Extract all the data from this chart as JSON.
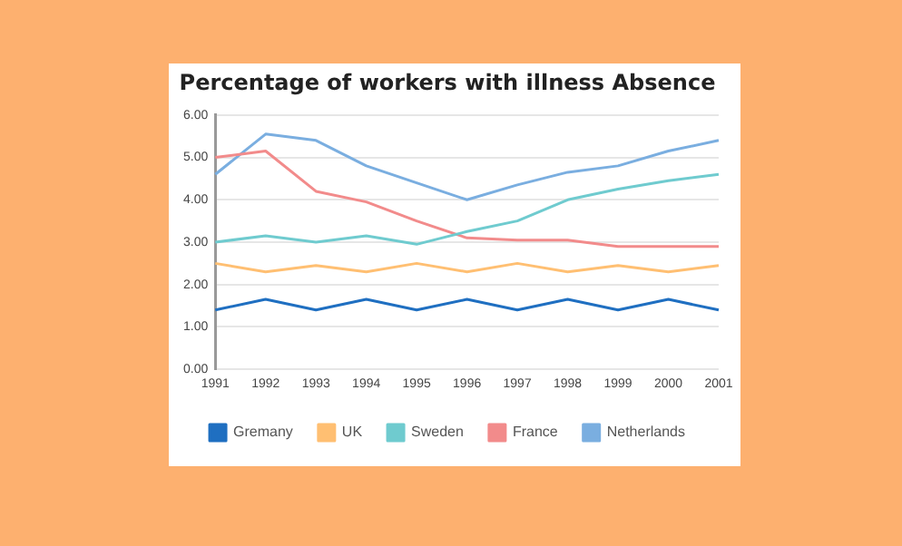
{
  "chart_data": {
    "type": "line",
    "title": "Percentage of workers with illness Absence",
    "categories": [
      "1991",
      "1992",
      "1993",
      "1994",
      "1995",
      "1996",
      "1997",
      "1998",
      "1999",
      "2000",
      "2001"
    ],
    "series": [
      {
        "name": "Gremany",
        "color": "#1f6fc1",
        "values": [
          1.4,
          1.65,
          1.4,
          1.65,
          1.4,
          1.65,
          1.4,
          1.65,
          1.4,
          1.65,
          1.4
        ]
      },
      {
        "name": "UK",
        "color": "#ffbf72",
        "values": [
          2.5,
          2.3,
          2.45,
          2.3,
          2.5,
          2.3,
          2.5,
          2.3,
          2.45,
          2.3,
          2.45
        ]
      },
      {
        "name": "Sweden",
        "color": "#6fcbcf",
        "values": [
          3.0,
          3.15,
          3.0,
          3.15,
          2.95,
          3.25,
          3.5,
          4.0,
          4.25,
          4.45,
          4.6
        ]
      },
      {
        "name": "France",
        "color": "#f28b8b",
        "values": [
          5.0,
          5.15,
          4.2,
          3.95,
          3.5,
          3.1,
          3.05,
          3.05,
          2.9,
          2.9,
          2.9
        ]
      },
      {
        "name": "Netherlands",
        "color": "#7aaee0",
        "values": [
          4.6,
          5.55,
          5.4,
          4.8,
          4.4,
          4.0,
          4.35,
          4.65,
          4.8,
          5.15,
          5.4
        ]
      }
    ],
    "ylim": [
      0,
      6
    ],
    "yticks": [
      {
        "value": 0,
        "label": "0.00"
      },
      {
        "value": 1,
        "label": "1.00"
      },
      {
        "value": 2,
        "label": "2.00"
      },
      {
        "value": 3,
        "label": "3.00"
      },
      {
        "value": 4,
        "label": "4.00"
      },
      {
        "value": 5,
        "label": "5.00"
      },
      {
        "value": 6,
        "label": "6.00"
      }
    ],
    "grid": "y",
    "legend": "bottom",
    "marker": "none",
    "line_style": "solid"
  }
}
